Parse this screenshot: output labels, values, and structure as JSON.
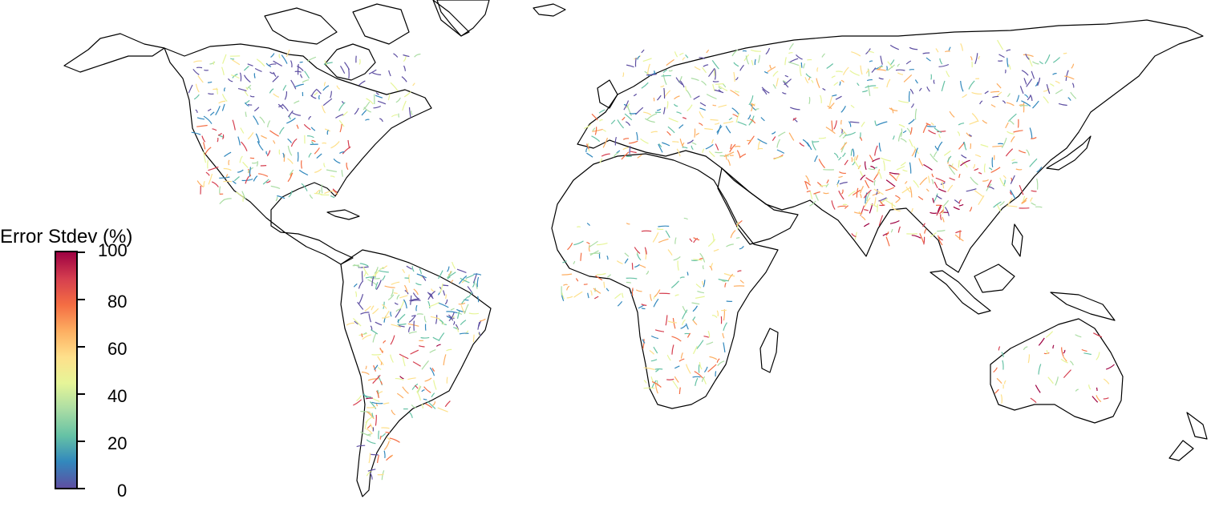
{
  "legend": {
    "title": "Error Stdev (%)",
    "ticks": [
      "0",
      "20",
      "40",
      "60",
      "80",
      "100"
    ],
    "colors": [
      "#5e4fa2",
      "#3288bd",
      "#66c2a5",
      "#abdda4",
      "#e6f598",
      "#fee08b",
      "#fdae61",
      "#f46d43",
      "#d53e4f",
      "#9e0142"
    ],
    "range": [
      0,
      100
    ]
  },
  "map": {
    "background": "#ffffff",
    "coastline_color": "#000000",
    "river_color_scale": "spectral"
  }
}
